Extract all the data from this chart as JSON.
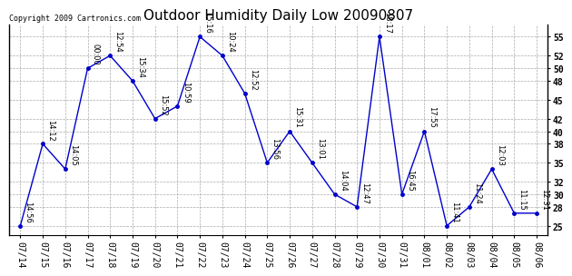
{
  "title": "Outdoor Humidity Daily Low 20090807",
  "copyright": "Copyright 2009 Cartronics.com",
  "x_labels": [
    "07/14",
    "07/15",
    "07/16",
    "07/17",
    "07/18",
    "07/19",
    "07/20",
    "07/21",
    "07/22",
    "07/23",
    "07/24",
    "07/25",
    "07/26",
    "07/27",
    "07/28",
    "07/29",
    "07/30",
    "07/31",
    "08/01",
    "08/02",
    "08/03",
    "08/04",
    "08/05",
    "08/06"
  ],
  "y_values": [
    25,
    38,
    34,
    50,
    52,
    48,
    42,
    44,
    55,
    52,
    46,
    35,
    40,
    35,
    30,
    28,
    55,
    30,
    40,
    25,
    28,
    34,
    27,
    27
  ],
  "point_labels": [
    "14:56",
    "14:12",
    "14:05",
    "00:00",
    "12:54",
    "15:34",
    "15:52",
    "10:59",
    "15:16",
    "10:24",
    "12:52",
    "13:56",
    "15:31",
    "13:01",
    "14:04",
    "12:47",
    "18:17",
    "16:45",
    "17:55",
    "11:41",
    "11:24",
    "12:03",
    "11:15",
    "12:31"
  ],
  "line_color": "#0000cc",
  "marker_color": "#0000cc",
  "bg_color": "#ffffff",
  "grid_color": "#aaaaaa",
  "ylim": [
    23.5,
    57
  ],
  "yticks": [
    25,
    28,
    30,
    32,
    35,
    38,
    40,
    42,
    45,
    48,
    50,
    52,
    55
  ],
  "title_fontsize": 11,
  "label_fontsize": 6,
  "tick_fontsize": 7,
  "copyright_fontsize": 6
}
